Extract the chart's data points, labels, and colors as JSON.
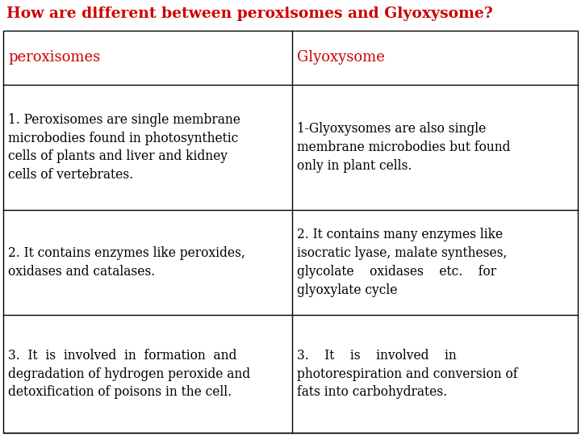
{
  "title": "How are different between peroxisomes and Glyoxysome?",
  "title_color": "#cc0000",
  "title_fontsize": 13.5,
  "col1_header": "peroxisomes",
  "col2_header": "Glyoxysome",
  "header_color": "#cc0000",
  "header_fontsize": 13,
  "body_fontsize": 11.2,
  "body_color": "#000000",
  "bg_color": "#ffffff",
  "border_color": "#000000",
  "rows": [
    {
      "col1": "1. Peroxisomes are single membrane\nmicrobodies found in photosynthetic\ncells of plants and liver and kidney\ncells of vertebrates.",
      "col2": "1-Glyoxysomes are also single\nmembrane microbodies but found\nonly in plant cells."
    },
    {
      "col1": "2. It contains enzymes like peroxides,\noxidases and catalases.",
      "col2": "2. It contains many enzymes like\nisocratic lyase, malate syntheses,\nglycolate    oxidases    etc.    for\nglyoxylate cycle"
    },
    {
      "col1": "3.  It  is  involved  in  formation  and\ndegradation of hydrogen peroxide and\ndetoxification of poisons in the cell.",
      "col2": "3.    It    is    involved    in\nphotorespiration and conversion of\nfats into carbohydrates."
    }
  ],
  "fig_width": 7.2,
  "fig_height": 5.4,
  "dpi": 100
}
